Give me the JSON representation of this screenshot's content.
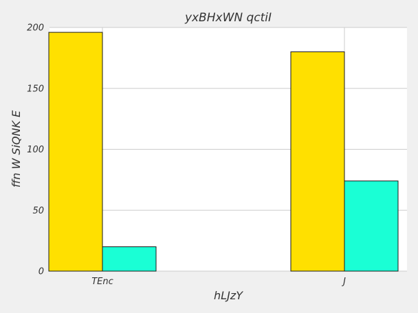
{
  "chart_data": {
    "type": "bar",
    "title": "yxBHxWN qctiI",
    "xlabel": "hLJzY",
    "ylabel": "ffn W SiQNK E",
    "categories": [
      "TEnc",
      "J"
    ],
    "series": [
      {
        "values": [
          196,
          180
        ],
        "color": "#ffe000"
      },
      {
        "values": [
          20,
          74
        ],
        "color": "#1affd5"
      }
    ],
    "ylim": [
      0,
      200
    ],
    "yticks": [
      0,
      50,
      100,
      150,
      200
    ],
    "grid": true,
    "plot_background": "#ffffff",
    "background": "#f0f0f0"
  }
}
